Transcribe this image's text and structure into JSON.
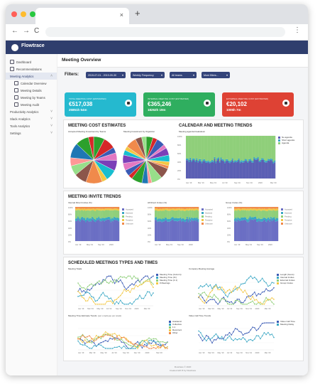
{
  "browser": {
    "tab_close": "×",
    "new_tab": "+",
    "back": "←",
    "forward": "→",
    "reload": "C",
    "menu": "⋮"
  },
  "app": {
    "brand": "Flowtrace"
  },
  "sidebar": {
    "items": [
      {
        "label": "Dashboard"
      },
      {
        "label": "Recommendations"
      },
      {
        "label": "Meeting Analytics"
      },
      {
        "label": "Calendar Overview"
      },
      {
        "label": "Meeting Details"
      },
      {
        "label": "Meeting by Teams"
      },
      {
        "label": "Meeting Audit"
      },
      {
        "label": "Productivity Analytics"
      },
      {
        "label": "Slack Analytics"
      },
      {
        "label": "Tools Analytics"
      },
      {
        "label": "Settings"
      }
    ]
  },
  "page": {
    "title": "Meeting Overview"
  },
  "filters": {
    "label": "Filters:",
    "date_range": "2019-07-01 - 2019-09-30",
    "frequency": "Weekly Frequency",
    "teams": "All teams",
    "more": "More filters...",
    "chevron": "▾"
  },
  "cards": [
    {
      "label": "TOTAL MEETING COST (ESTIMATED)",
      "value1": "€517,038",
      "value2": "25851h 54m",
      "color": "#25b9cf"
    },
    {
      "label": "INTERNAL MEETING COST (ESTIMATED)",
      "value1": "€365,246",
      "value2": "18262h 19m",
      "color": "#2fae5f"
    },
    {
      "label": "EXTERNAL MEETING COST (ESTIMATED)",
      "value1": "€20,102",
      "value2": "1005h 7m",
      "color": "#de4234"
    }
  ],
  "cost_section": {
    "title": "MEETING COST ESTIMATES",
    "pie1_title": "Accepted Meeting Investment by Teams",
    "pie2_title": "Meeting Investment by Organizer"
  },
  "calendar_section": {
    "title": "CALENDAR AND MEETING TRENDS",
    "subtitle": "Meeting agenda breakdown",
    "legend": [
      {
        "name": "No agenda",
        "color": "#5b5fb4"
      },
      {
        "name": "Short agenda",
        "color": "#3aa7c4"
      },
      {
        "name": "Agenda",
        "color": "#8fcf7a"
      }
    ],
    "x_ticks": [
      "Jan '19",
      "Mar '19",
      "May '19",
      "Jul '19",
      "Sep '19",
      "Nov '19",
      "2020",
      "Mar '20"
    ],
    "y_ticks": [
      "100%",
      "80%",
      "60%",
      "40%",
      "20%",
      "0%"
    ]
  },
  "invite_section": {
    "title": "MEETING INVITE TRENDS",
    "charts": [
      {
        "title": "Internal Direct Invites (%)"
      },
      {
        "title": "All Direct Invites (%)"
      },
      {
        "title": "Group Invites (%)"
      }
    ],
    "legend": [
      {
        "name": "Accepted",
        "color": "#6b6fc4"
      },
      {
        "name": "Declined",
        "color": "#3aa7c4"
      },
      {
        "name": "Pending",
        "color": "#8fcf7a"
      },
      {
        "name": "Tentative",
        "color": "#f2c744"
      },
      {
        "name": "Unknown",
        "color": "#f08a4b"
      }
    ],
    "x_ticks": [
      "Jan '19",
      "May '19",
      "Sep '19",
      "2020"
    ],
    "y_ticks": [
      "100%",
      "80%",
      "60%",
      "40%",
      "20%",
      "0%"
    ]
  },
  "scheduled_section": {
    "title": "SCHEDULED MEETINGS TYPES AND TIMES",
    "chart1": {
      "title": "Meeting Totals",
      "legend": [
        {
          "name": "Meeting Time (1x1min)",
          "color": "#3b5bb5"
        },
        {
          "name": "Meeting Time (IC)",
          "color": "#3aa7c4"
        },
        {
          "name": "Meeting Time (1:1)",
          "color": "#8fcf7a"
        },
        {
          "name": "# Meetings",
          "color": "#f2c744"
        }
      ]
    },
    "chart2": {
      "title": "Company Meeting Average",
      "legend": [
        {
          "name": "Length (hours)",
          "color": "#3b5bb5"
        },
        {
          "name": "Internal Invites",
          "color": "#3aa7c4"
        },
        {
          "name": "External Invites",
          "color": "#8fcf7a"
        },
        {
          "name": "Group Invites",
          "color": "#f2c744"
        }
      ]
    },
    "chart3": {
      "title": "Meeting Time Estimate Trends",
      "subtitle": "(per employee per week)",
      "legend": [
        {
          "name": "Academic",
          "color": "#3b5bb5"
        },
        {
          "name": "Collective",
          "color": "#3aa7c4"
        },
        {
          "name": "1:1",
          "color": "#8fcf7a"
        },
        {
          "name": "Recurrent",
          "color": "#f2c744"
        },
        {
          "name": "Other",
          "color": "#f08a4b"
        }
      ]
    },
    "chart4": {
      "title": "Video Call Time Trends",
      "legend": [
        {
          "name": "Video Call Time",
          "color": "#3b5bb5"
        },
        {
          "name": "Meeting Delay",
          "color": "#3aa7c4"
        }
      ]
    },
    "x_ticks": [
      "Jan '19",
      "Mar '19",
      "May '19",
      "Jul '19",
      "Sep '19",
      "Nov '19",
      "2020",
      "Mar '20"
    ]
  },
  "footer": {
    "line1": "Flowtrace © 2020",
    "line2": "Created with ♥ by Flowtrace"
  },
  "colors": {
    "appbar": "#2f3e6d",
    "pills": "#34447a",
    "pie_palette": [
      "#2ca02c",
      "#d62728",
      "#3b5bb5",
      "#e377c2",
      "#7b3fb8",
      "#17becf",
      "#f2c744",
      "#f08a4b",
      "#8c564b",
      "#98df8a",
      "#ff9896",
      "#1f77b4"
    ]
  }
}
